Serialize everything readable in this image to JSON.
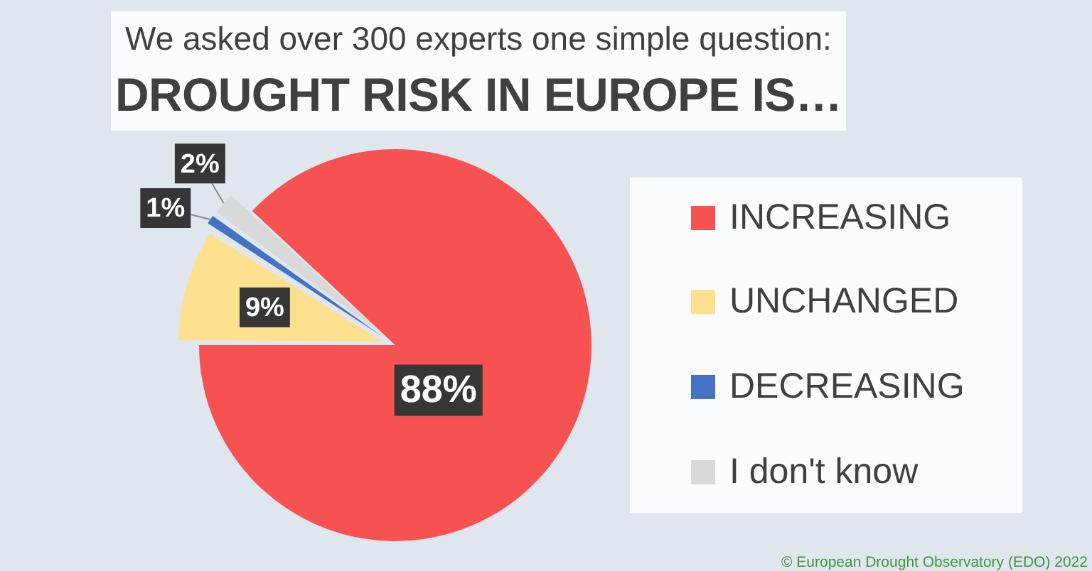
{
  "chart_data": {
    "type": "pie",
    "title": "DROUGHT RISK IN EUROPE IS…",
    "subtitle": "We asked over 300 experts one simple question:",
    "categories": [
      "INCREASING",
      "UNCHANGED",
      "DECREASING",
      "I don't know"
    ],
    "values": [
      88,
      9,
      1,
      2
    ],
    "colors": [
      "#f75252",
      "#fde08e",
      "#4472c4",
      "#d9d9d9"
    ],
    "value_labels": [
      "88%",
      "9%",
      "1%",
      "2%"
    ],
    "legend": "right",
    "annotations": [
      "© European Drought Observatory (EDO) 2022"
    ]
  }
}
